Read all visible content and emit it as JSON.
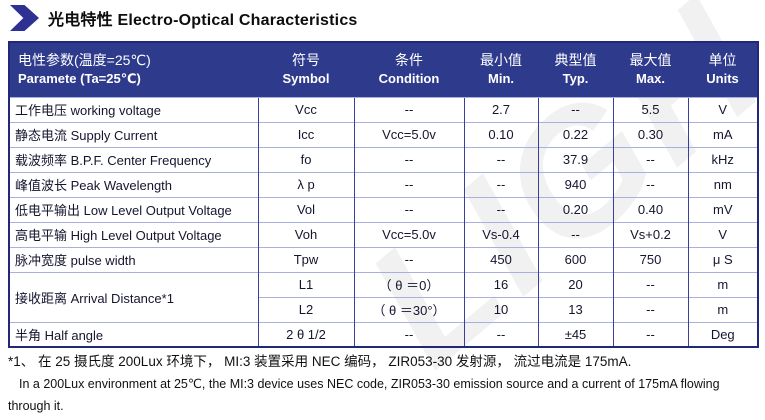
{
  "title": {
    "text": "光电特性 Electro-Optical Characteristics"
  },
  "colors": {
    "header_bg": "#2E3A8C",
    "outer_border": "#23277B",
    "grid_dark": "#3A3F9E",
    "grid_light": "#A9AFDE",
    "arrow": "#2E3192",
    "header_text": "#FFFFFF",
    "body_text": "#15152F"
  },
  "table": {
    "header": {
      "parameter": {
        "zh": "电性参数(温度=25℃)",
        "en": "Paramete (Ta=25℃)"
      },
      "cols": [
        {
          "zh": "符号",
          "en": "Symbol"
        },
        {
          "zh": "条件",
          "en": "Condition"
        },
        {
          "zh": "最小值",
          "en": "Min."
        },
        {
          "zh": "典型值",
          "en": "Typ."
        },
        {
          "zh": "最大值",
          "en": "Max."
        },
        {
          "zh": "单位",
          "en": "Units"
        }
      ]
    },
    "rows": [
      {
        "cells": [
          {
            "t": "工作电压  working voltage",
            "align": "left"
          },
          {
            "t": "Vcc"
          },
          {
            "t": "--"
          },
          {
            "t": "2.7"
          },
          {
            "t": "--"
          },
          {
            "t": "5.5"
          },
          {
            "t": "V"
          }
        ]
      },
      {
        "cells": [
          {
            "t": "静态电流  Supply Current",
            "align": "left"
          },
          {
            "t": "Icc"
          },
          {
            "t": "Vcc=5.0v"
          },
          {
            "t": "0.10"
          },
          {
            "t": "0.22"
          },
          {
            "t": "0.30"
          },
          {
            "t": "mA"
          }
        ]
      },
      {
        "cells": [
          {
            "t": "载波频率  B.P.F. Center Frequency",
            "align": "left"
          },
          {
            "t": "fo"
          },
          {
            "t": "--"
          },
          {
            "t": "--"
          },
          {
            "t": "37.9"
          },
          {
            "t": "--"
          },
          {
            "t": "kHz"
          }
        ]
      },
      {
        "cells": [
          {
            "t": "峰值波长  Peak Wavelength",
            "align": "left"
          },
          {
            "t": "λ p"
          },
          {
            "t": "--"
          },
          {
            "t": "--"
          },
          {
            "t": "940"
          },
          {
            "t": "--"
          },
          {
            "t": "nm"
          }
        ]
      },
      {
        "cells": [
          {
            "t": "低电平输出 Low Level Output Voltage",
            "align": "left"
          },
          {
            "t": "Vol"
          },
          {
            "t": "--"
          },
          {
            "t": "--"
          },
          {
            "t": "0.20"
          },
          {
            "t": "0.40"
          },
          {
            "t": "mV"
          }
        ]
      },
      {
        "cells": [
          {
            "t": "高电平输 High Level Output Voltage",
            "align": "left"
          },
          {
            "t": "Voh"
          },
          {
            "t": "Vcc=5.0v"
          },
          {
            "t": "Vs-0.4"
          },
          {
            "t": "--"
          },
          {
            "t": "Vs+0.2"
          },
          {
            "t": "V"
          }
        ]
      },
      {
        "cells": [
          {
            "t": "脉冲宽度  pulse width",
            "align": "left"
          },
          {
            "t": "Tpw"
          },
          {
            "t": "--"
          },
          {
            "t": "450"
          },
          {
            "t": "600"
          },
          {
            "t": "750"
          },
          {
            "t": "μ S"
          }
        ]
      },
      {
        "cells": [
          {
            "t": "接收距离  Arrival Distance*1",
            "align": "left",
            "rowspan": 2
          },
          {
            "t": "L1"
          },
          {
            "t": "（ θ ＝0）"
          },
          {
            "t": "16"
          },
          {
            "t": "20"
          },
          {
            "t": "--"
          },
          {
            "t": "m"
          }
        ]
      },
      {
        "cells": [
          {
            "t": "L2"
          },
          {
            "t": "（ θ ＝30°）"
          },
          {
            "t": "10"
          },
          {
            "t": "13"
          },
          {
            "t": "--"
          },
          {
            "t": "m"
          }
        ]
      },
      {
        "cells": [
          {
            "t": "半角  Half angle",
            "align": "left"
          },
          {
            "t": "2 θ 1/2"
          },
          {
            "t": "--"
          },
          {
            "t": "--"
          },
          {
            "t": "±45"
          },
          {
            "t": "--"
          },
          {
            "t": "Deg"
          }
        ]
      }
    ]
  },
  "footnote": {
    "line1": "*1、 在 25 摄氏度 200Lux 环境下， MI:3 装置采用 NEC 编码， ZIR053-30 发射源， 流过电流是 175mA.",
    "line2": "In a 200Lux environment at 25℃, the MI:3 device uses NEC code, ZIR053-30 emission source and a current of 175mA flowing",
    "line3": "through it."
  },
  "watermark": {
    "text": "LIGHT"
  }
}
